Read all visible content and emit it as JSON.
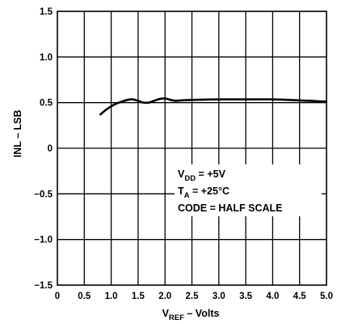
{
  "chart_data": {
    "type": "line",
    "title": "",
    "xlabel": {
      "main": "V",
      "sub": "REF",
      "rest": " – Volts"
    },
    "ylabel": "INL – LSB",
    "xlim": [
      0,
      5
    ],
    "ylim": [
      -1.5,
      1.5
    ],
    "x_ticks": [
      0,
      0.5,
      1.0,
      1.5,
      2.0,
      2.5,
      3.0,
      3.5,
      4.0,
      4.5,
      5.0
    ],
    "x_tick_labels": [
      "0",
      "0.5",
      "1.0",
      "1.5",
      "2.0",
      "2.5",
      "3.0",
      "3.5",
      "4.0",
      "4.5",
      "5.0"
    ],
    "y_ticks": [
      -1.5,
      -1.0,
      -0.5,
      0,
      0.5,
      1.0,
      1.5
    ],
    "y_tick_labels": [
      "−1.5",
      "−1.0",
      "−0.5",
      "0",
      "0.5",
      "1.0",
      "1.5"
    ],
    "grid": true,
    "series": [
      {
        "x": [
          0.8,
          0.9,
          1.0,
          1.1,
          1.2,
          1.3,
          1.4,
          1.5,
          1.6,
          1.7,
          1.8,
          1.9,
          2.0,
          2.1,
          2.2,
          2.3,
          2.5,
          3.0,
          3.5,
          4.0,
          4.5,
          5.0
        ],
        "y": [
          0.37,
          0.42,
          0.46,
          0.49,
          0.51,
          0.53,
          0.535,
          0.52,
          0.5,
          0.5,
          0.52,
          0.54,
          0.545,
          0.53,
          0.52,
          0.525,
          0.53,
          0.535,
          0.535,
          0.535,
          0.525,
          0.51
        ]
      }
    ],
    "annotations": [
      {
        "main": "V",
        "sub": "DD",
        "rest": " = +5V"
      },
      {
        "main": "T",
        "sub": "A",
        "rest": " = +25°C"
      },
      {
        "main": "CODE = HALF SCALE",
        "sub": "",
        "rest": ""
      }
    ]
  },
  "colors": {
    "line": "#000000",
    "grid": "#000000",
    "background": "#ffffff"
  }
}
